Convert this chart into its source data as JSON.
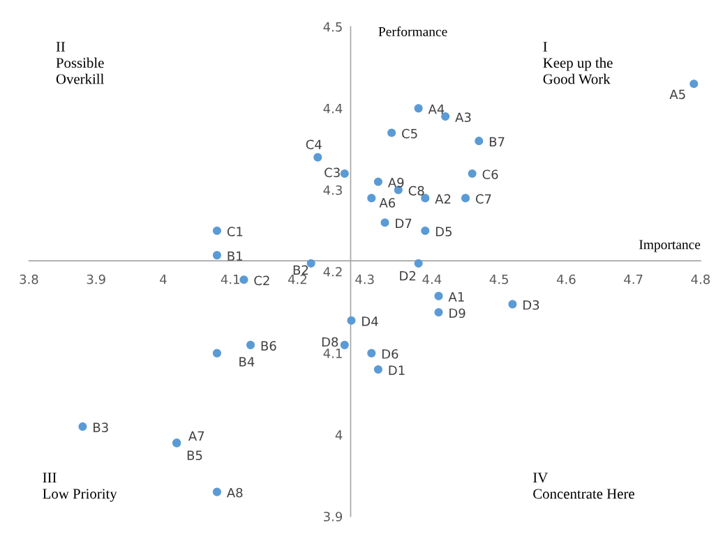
{
  "chart_data": {
    "type": "scatter",
    "xlabel": "Importance",
    "ylabel": "Performance",
    "color": "#5b9bd5",
    "marker": "circle",
    "grid": false,
    "x": [
      4.79,
      4.38,
      4.42,
      4.34,
      4.47,
      4.23,
      4.27,
      4.46,
      4.32,
      4.35,
      4.31,
      4.39,
      4.45,
      4.33,
      4.39,
      4.08,
      4.08,
      4.22,
      4.38,
      4.12,
      4.41,
      4.52,
      4.41,
      4.28,
      4.13,
      4.27,
      4.08,
      4.31,
      4.32,
      3.88,
      4.02,
      4.02,
      4.08
    ],
    "values": [
      4.43,
      4.4,
      4.39,
      4.37,
      4.36,
      4.34,
      4.32,
      4.32,
      4.31,
      4.3,
      4.29,
      4.29,
      4.29,
      4.26,
      4.25,
      4.25,
      4.22,
      4.21,
      4.21,
      4.19,
      4.17,
      4.16,
      4.15,
      4.14,
      4.11,
      4.11,
      4.1,
      4.1,
      4.08,
      4.01,
      3.99,
      3.99,
      3.93
    ],
    "xlim": [
      3.8,
      4.8
    ],
    "ylim": [
      3.9,
      4.5
    ],
    "xticks": [
      3.8,
      3.9,
      4,
      4.1,
      4.2,
      4.3,
      4.4,
      4.5,
      4.6,
      4.7,
      4.8
    ],
    "yticks": [
      3.9,
      4,
      4.1,
      4.2,
      4.3,
      4.4,
      4.5
    ],
    "annotations": [
      {
        "text": "A5",
        "x": 4.79,
        "y": 4.43
      },
      {
        "text": "A4",
        "x": 4.38,
        "y": 4.4
      },
      {
        "text": "A3",
        "x": 4.42,
        "y": 4.39
      },
      {
        "text": "C5",
        "x": 4.34,
        "y": 4.37
      },
      {
        "text": "B7",
        "x": 4.47,
        "y": 4.36
      },
      {
        "text": "C4",
        "x": 4.23,
        "y": 4.34
      },
      {
        "text": "C3",
        "x": 4.27,
        "y": 4.32
      },
      {
        "text": "C6",
        "x": 4.46,
        "y": 4.32
      },
      {
        "text": "A9",
        "x": 4.32,
        "y": 4.31
      },
      {
        "text": "C8",
        "x": 4.35,
        "y": 4.3
      },
      {
        "text": "A6",
        "x": 4.31,
        "y": 4.29
      },
      {
        "text": "A2",
        "x": 4.39,
        "y": 4.29
      },
      {
        "text": "C7",
        "x": 4.45,
        "y": 4.29
      },
      {
        "text": "D7",
        "x": 4.33,
        "y": 4.26
      },
      {
        "text": "D5",
        "x": 4.39,
        "y": 4.25
      },
      {
        "text": "C1",
        "x": 4.08,
        "y": 4.25
      },
      {
        "text": "B1",
        "x": 4.08,
        "y": 4.22
      },
      {
        "text": "B2",
        "x": 4.22,
        "y": 4.21
      },
      {
        "text": "D2",
        "x": 4.38,
        "y": 4.21
      },
      {
        "text": "C2",
        "x": 4.12,
        "y": 4.19
      },
      {
        "text": "A1",
        "x": 4.41,
        "y": 4.17
      },
      {
        "text": "D3",
        "x": 4.52,
        "y": 4.16
      },
      {
        "text": "D9",
        "x": 4.41,
        "y": 4.15
      },
      {
        "text": "D4",
        "x": 4.28,
        "y": 4.14
      },
      {
        "text": "B6",
        "x": 4.13,
        "y": 4.11
      },
      {
        "text": "D8",
        "x": 4.27,
        "y": 4.11
      },
      {
        "text": "B4",
        "x": 4.08,
        "y": 4.1
      },
      {
        "text": "D6",
        "x": 4.31,
        "y": 4.1
      },
      {
        "text": "D1",
        "x": 4.32,
        "y": 4.08
      },
      {
        "text": "B3",
        "x": 3.88,
        "y": 4.01
      },
      {
        "text": "A7",
        "x": 4.02,
        "y": 3.99
      },
      {
        "text": "B5",
        "x": 4.02,
        "y": 3.99
      },
      {
        "text": "A8",
        "x": 4.08,
        "y": 3.93
      },
      "I\nKeep up the\nGood Work",
      "II\nPossible\nOverkill",
      "III\nLow Priority",
      "IV\nConcentrate Here"
    ]
  }
}
